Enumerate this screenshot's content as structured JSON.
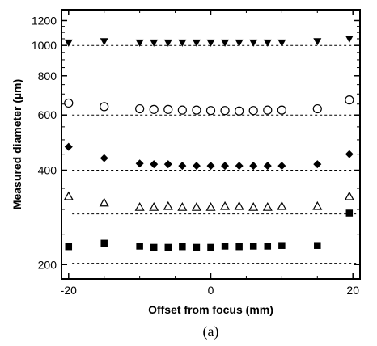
{
  "chart_data": {
    "type": "scatter",
    "xlabel": "Offset from focus (mm)",
    "ylabel": "Measured diameter (µm)",
    "caption": "(a)",
    "xlim": [
      -21,
      21
    ],
    "ylim": [
      180,
      1300
    ],
    "y_scale": "log",
    "x_ticks": [
      -20,
      0,
      20
    ],
    "x_tick_labels": [
      "-20",
      "0",
      "20"
    ],
    "y_ticks": [
      200,
      400,
      600,
      800,
      1000,
      1200
    ],
    "y_tick_labels": [
      "200",
      "400",
      "600",
      "800",
      "1000",
      "1200"
    ],
    "grid": false,
    "series": [
      {
        "marker": "triangle-down-filled",
        "color": "#000000",
        "points": [
          [
            -20,
            1020
          ],
          [
            -15,
            1030
          ],
          [
            -10,
            1020
          ],
          [
            -8,
            1020
          ],
          [
            -6,
            1020
          ],
          [
            -4,
            1020
          ],
          [
            -2,
            1020
          ],
          [
            0,
            1020
          ],
          [
            2,
            1020
          ],
          [
            4,
            1020
          ],
          [
            6,
            1020
          ],
          [
            8,
            1020
          ],
          [
            10,
            1020
          ],
          [
            15,
            1030
          ],
          [
            19.5,
            1050
          ]
        ],
        "reference_y": 1000
      },
      {
        "marker": "circle-open",
        "color": "#000000",
        "points": [
          [
            -20,
            655
          ],
          [
            -15,
            638
          ],
          [
            -10,
            628
          ],
          [
            -8,
            625
          ],
          [
            -6,
            625
          ],
          [
            -4,
            622
          ],
          [
            -2,
            622
          ],
          [
            0,
            620
          ],
          [
            2,
            620
          ],
          [
            4,
            618
          ],
          [
            6,
            620
          ],
          [
            8,
            622
          ],
          [
            10,
            622
          ],
          [
            15,
            628
          ],
          [
            19.5,
            670
          ]
        ],
        "reference_y": 600
      },
      {
        "marker": "diamond-filled",
        "color": "#000000",
        "points": [
          [
            -20,
            475
          ],
          [
            -15,
            437
          ],
          [
            -10,
            420
          ],
          [
            -8,
            418
          ],
          [
            -6,
            418
          ],
          [
            -4,
            413
          ],
          [
            -2,
            413
          ],
          [
            0,
            413
          ],
          [
            2,
            413
          ],
          [
            4,
            413
          ],
          [
            6,
            413
          ],
          [
            8,
            413
          ],
          [
            10,
            413
          ],
          [
            15,
            418
          ],
          [
            19.5,
            450
          ]
        ],
        "reference_y": 400
      },
      {
        "marker": "triangle-up-open",
        "color": "#000000",
        "points": [
          [
            -20,
            330
          ],
          [
            -15,
            315
          ],
          [
            -10,
            305
          ],
          [
            -8,
            305
          ],
          [
            -6,
            307
          ],
          [
            -4,
            305
          ],
          [
            -2,
            305
          ],
          [
            0,
            305
          ],
          [
            2,
            307
          ],
          [
            4,
            307
          ],
          [
            6,
            305
          ],
          [
            8,
            305
          ],
          [
            10,
            307
          ],
          [
            15,
            307
          ],
          [
            19.5,
            330
          ]
        ],
        "reference_y": 290
      },
      {
        "marker": "square-filled",
        "color": "#000000",
        "points": [
          [
            -20,
            228
          ],
          [
            -15,
            234
          ],
          [
            -10,
            229
          ],
          [
            -8,
            227
          ],
          [
            -6,
            227
          ],
          [
            -4,
            228
          ],
          [
            -2,
            227
          ],
          [
            0,
            227
          ],
          [
            2,
            229
          ],
          [
            4,
            228
          ],
          [
            6,
            229
          ],
          [
            8,
            229
          ],
          [
            10,
            230
          ],
          [
            15,
            230
          ],
          [
            19.5,
            292
          ]
        ],
        "reference_y": 202
      }
    ]
  }
}
